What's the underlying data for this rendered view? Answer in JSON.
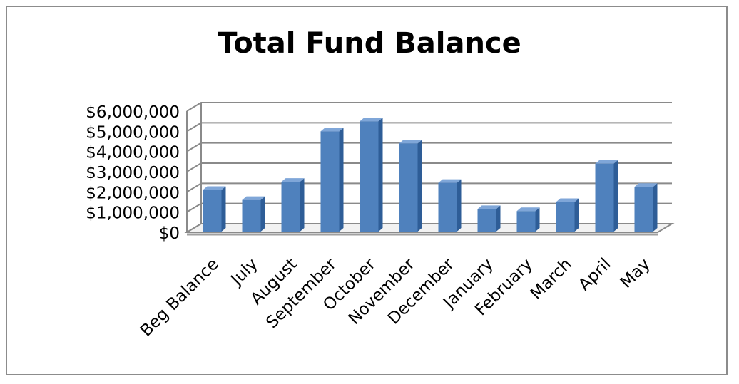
{
  "chart_data": {
    "type": "bar",
    "title": "Total Fund Balance",
    "xlabel": "",
    "ylabel": "",
    "categories": [
      "Beg Balance",
      "July",
      "August",
      "September",
      "October",
      "November",
      "December",
      "January",
      "February",
      "March",
      "April",
      "May"
    ],
    "values": [
      2100000,
      1600000,
      2500000,
      5000000,
      5500000,
      4400000,
      2450000,
      1150000,
      1050000,
      1500000,
      3400000,
      2250000
    ],
    "ylim": [
      0,
      6000000
    ],
    "yticks": [
      "$0",
      "$1,000,000",
      "$2,000,000",
      "$3,000,000",
      "$4,000,000",
      "$5,000,000",
      "$6,000,000"
    ],
    "grid": true,
    "style": "3d-column",
    "legend": "none",
    "colors": {
      "bar_front": "#4f81bd",
      "bar_side": "#2e5d97",
      "bar_top": "#7fa6d8",
      "gridline": "#8a8a8a",
      "wall": "#ffffff"
    }
  }
}
